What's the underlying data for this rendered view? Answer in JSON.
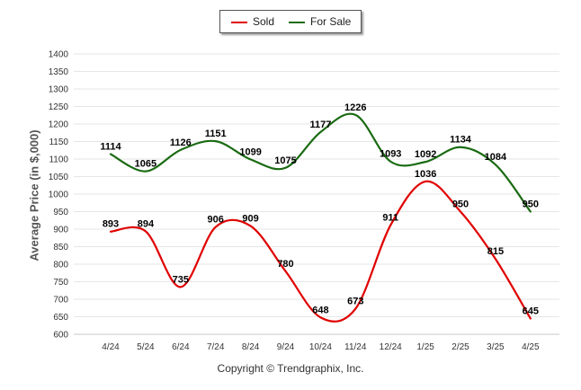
{
  "chart_data": {
    "type": "line",
    "categories": [
      "4/24",
      "5/24",
      "6/24",
      "7/24",
      "8/24",
      "9/24",
      "10/24",
      "11/24",
      "12/24",
      "1/25",
      "2/25",
      "3/25",
      "4/25"
    ],
    "series": [
      {
        "name": "Sold",
        "color": "#e00000",
        "values": [
          893,
          894,
          735,
          906,
          909,
          780,
          648,
          673,
          911,
          1036,
          950,
          815,
          645
        ]
      },
      {
        "name": "For Sale",
        "color": "#1a6b12",
        "values": [
          1114,
          1065,
          1126,
          1151,
          1099,
          1075,
          1177,
          1226,
          1093,
          1092,
          1134,
          1084,
          950
        ]
      }
    ],
    "ylabel": "Average Price (in $,000)",
    "ylim": [
      600,
      1400
    ],
    "ytick_step": 50,
    "yticks": [
      "600",
      "650",
      "700",
      "750",
      "800",
      "850",
      "900",
      "950",
      "1000",
      "1050",
      "1100",
      "1150",
      "1200",
      "1250",
      "1300",
      "1350",
      "1400"
    ],
    "grid": true,
    "legend_position": "top-center"
  },
  "footer": "Copyright © Trendgraphix, Inc."
}
